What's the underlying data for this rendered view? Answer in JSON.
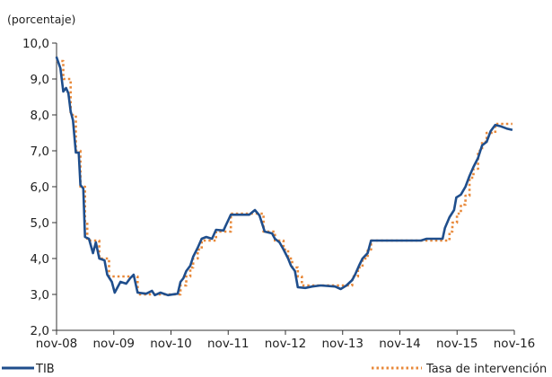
{
  "chart_data": {
    "type": "line",
    "unit_label": "(porcentaje)",
    "x_tick_labels": [
      "nov-08",
      "nov-09",
      "nov-10",
      "nov-11",
      "nov-12",
      "nov-13",
      "nov-14",
      "nov-15",
      "nov-16"
    ],
    "x_ticks": [
      2008.833,
      2009.833,
      2010.833,
      2011.833,
      2012.833,
      2013.833,
      2014.833,
      2015.833,
      2016.833
    ],
    "xlim": [
      2008.833,
      2016.833
    ],
    "ylim": [
      2.0,
      10.0
    ],
    "y_ticks": [
      2.0,
      3.0,
      4.0,
      5.0,
      6.0,
      7.0,
      8.0,
      9.0,
      10.0
    ],
    "y_tick_labels": [
      "2,0",
      "3,0",
      "4,0",
      "5,0",
      "6,0",
      "7,0",
      "8,0",
      "9,0",
      "10,0"
    ],
    "colors": {
      "tib": "#1f4e8c",
      "tasa": "#e8893a",
      "axis": "#333333"
    },
    "legend_position": "bottom",
    "series": [
      {
        "name": "TIB",
        "style": "solid",
        "points": [
          [
            2008.83,
            9.62
          ],
          [
            2008.9,
            9.3
          ],
          [
            2008.95,
            8.65
          ],
          [
            2009.0,
            8.75
          ],
          [
            2009.04,
            8.6
          ],
          [
            2009.08,
            8.1
          ],
          [
            2009.12,
            7.85
          ],
          [
            2009.17,
            6.95
          ],
          [
            2009.22,
            6.95
          ],
          [
            2009.25,
            6.05
          ],
          [
            2009.3,
            5.95
          ],
          [
            2009.33,
            4.6
          ],
          [
            2009.4,
            4.55
          ],
          [
            2009.47,
            4.15
          ],
          [
            2009.52,
            4.45
          ],
          [
            2009.58,
            4.0
          ],
          [
            2009.67,
            3.95
          ],
          [
            2009.72,
            3.55
          ],
          [
            2009.8,
            3.35
          ],
          [
            2009.85,
            3.05
          ],
          [
            2009.95,
            3.35
          ],
          [
            2010.05,
            3.3
          ],
          [
            2010.12,
            3.45
          ],
          [
            2010.18,
            3.55
          ],
          [
            2010.25,
            3.05
          ],
          [
            2010.4,
            3.02
          ],
          [
            2010.5,
            3.1
          ],
          [
            2010.55,
            2.98
          ],
          [
            2010.65,
            3.05
          ],
          [
            2010.78,
            2.98
          ],
          [
            2010.95,
            3.02
          ],
          [
            2011.0,
            3.35
          ],
          [
            2011.05,
            3.45
          ],
          [
            2011.1,
            3.65
          ],
          [
            2011.17,
            3.8
          ],
          [
            2011.22,
            4.05
          ],
          [
            2011.3,
            4.3
          ],
          [
            2011.37,
            4.55
          ],
          [
            2011.45,
            4.6
          ],
          [
            2011.55,
            4.55
          ],
          [
            2011.62,
            4.8
          ],
          [
            2011.75,
            4.78
          ],
          [
            2011.8,
            4.95
          ],
          [
            2011.88,
            5.22
          ],
          [
            2012.05,
            5.22
          ],
          [
            2012.2,
            5.22
          ],
          [
            2012.3,
            5.35
          ],
          [
            2012.38,
            5.2
          ],
          [
            2012.47,
            4.75
          ],
          [
            2012.6,
            4.7
          ],
          [
            2012.65,
            4.55
          ],
          [
            2012.73,
            4.45
          ],
          [
            2012.8,
            4.25
          ],
          [
            2012.88,
            4.0
          ],
          [
            2012.93,
            3.8
          ],
          [
            2013.0,
            3.65
          ],
          [
            2013.05,
            3.2
          ],
          [
            2013.18,
            3.18
          ],
          [
            2013.3,
            3.22
          ],
          [
            2013.45,
            3.25
          ],
          [
            2013.7,
            3.22
          ],
          [
            2013.8,
            3.15
          ],
          [
            2013.9,
            3.25
          ],
          [
            2014.0,
            3.4
          ],
          [
            2014.05,
            3.55
          ],
          [
            2014.12,
            3.8
          ],
          [
            2014.18,
            4.0
          ],
          [
            2014.27,
            4.15
          ],
          [
            2014.33,
            4.5
          ],
          [
            2014.55,
            4.5
          ],
          [
            2014.9,
            4.5
          ],
          [
            2015.2,
            4.5
          ],
          [
            2015.3,
            4.55
          ],
          [
            2015.45,
            4.55
          ],
          [
            2015.58,
            4.55
          ],
          [
            2015.62,
            4.85
          ],
          [
            2015.7,
            5.15
          ],
          [
            2015.78,
            5.35
          ],
          [
            2015.82,
            5.7
          ],
          [
            2015.9,
            5.78
          ],
          [
            2015.98,
            6.0
          ],
          [
            2016.05,
            6.3
          ],
          [
            2016.12,
            6.55
          ],
          [
            2016.2,
            6.8
          ],
          [
            2016.27,
            7.15
          ],
          [
            2016.35,
            7.25
          ],
          [
            2016.42,
            7.55
          ],
          [
            2016.5,
            7.72
          ],
          [
            2016.6,
            7.68
          ],
          [
            2016.7,
            7.62
          ],
          [
            2016.8,
            7.58
          ]
        ]
      },
      {
        "name": "Tasa de intervención",
        "style": "dotted",
        "points": [
          [
            2008.83,
            9.5
          ],
          [
            2008.95,
            9.5
          ],
          [
            2008.95,
            9.0
          ],
          [
            2009.08,
            9.0
          ],
          [
            2009.08,
            8.0
          ],
          [
            2009.17,
            8.0
          ],
          [
            2009.17,
            7.0
          ],
          [
            2009.25,
            7.0
          ],
          [
            2009.25,
            6.0
          ],
          [
            2009.33,
            6.0
          ],
          [
            2009.33,
            5.0
          ],
          [
            2009.37,
            5.0
          ],
          [
            2009.37,
            4.5
          ],
          [
            2009.58,
            4.5
          ],
          [
            2009.58,
            4.0
          ],
          [
            2009.75,
            4.0
          ],
          [
            2009.75,
            3.5
          ],
          [
            2010.25,
            3.5
          ],
          [
            2010.25,
            3.0
          ],
          [
            2011.0,
            3.0
          ],
          [
            2011.0,
            3.25
          ],
          [
            2011.1,
            3.25
          ],
          [
            2011.1,
            3.5
          ],
          [
            2011.17,
            3.5
          ],
          [
            2011.17,
            3.75
          ],
          [
            2011.22,
            3.75
          ],
          [
            2011.22,
            4.0
          ],
          [
            2011.3,
            4.0
          ],
          [
            2011.3,
            4.25
          ],
          [
            2011.37,
            4.25
          ],
          [
            2011.37,
            4.5
          ],
          [
            2011.62,
            4.5
          ],
          [
            2011.62,
            4.75
          ],
          [
            2011.88,
            4.75
          ],
          [
            2011.88,
            5.25
          ],
          [
            2012.45,
            5.25
          ],
          [
            2012.45,
            4.75
          ],
          [
            2012.65,
            4.75
          ],
          [
            2012.65,
            4.5
          ],
          [
            2012.8,
            4.5
          ],
          [
            2012.8,
            4.25
          ],
          [
            2012.88,
            4.25
          ],
          [
            2012.88,
            4.0
          ],
          [
            2012.95,
            4.0
          ],
          [
            2012.95,
            3.75
          ],
          [
            2013.05,
            3.75
          ],
          [
            2013.05,
            3.5
          ],
          [
            2013.12,
            3.5
          ],
          [
            2013.12,
            3.25
          ],
          [
            2014.0,
            3.25
          ],
          [
            2014.0,
            3.5
          ],
          [
            2014.1,
            3.5
          ],
          [
            2014.1,
            3.75
          ],
          [
            2014.18,
            3.75
          ],
          [
            2014.18,
            4.0
          ],
          [
            2014.27,
            4.0
          ],
          [
            2014.27,
            4.25
          ],
          [
            2014.33,
            4.25
          ],
          [
            2014.33,
            4.5
          ],
          [
            2015.7,
            4.5
          ],
          [
            2015.7,
            4.75
          ],
          [
            2015.75,
            4.75
          ],
          [
            2015.75,
            5.0
          ],
          [
            2015.83,
            5.0
          ],
          [
            2015.83,
            5.25
          ],
          [
            2015.9,
            5.25
          ],
          [
            2015.9,
            5.5
          ],
          [
            2015.98,
            5.5
          ],
          [
            2015.98,
            5.75
          ],
          [
            2016.05,
            5.75
          ],
          [
            2016.05,
            6.25
          ],
          [
            2016.12,
            6.25
          ],
          [
            2016.12,
            6.5
          ],
          [
            2016.2,
            6.5
          ],
          [
            2016.2,
            7.0
          ],
          [
            2016.27,
            7.0
          ],
          [
            2016.27,
            7.25
          ],
          [
            2016.35,
            7.25
          ],
          [
            2016.35,
            7.5
          ],
          [
            2016.5,
            7.5
          ],
          [
            2016.5,
            7.75
          ],
          [
            2016.8,
            7.75
          ]
        ]
      }
    ]
  }
}
